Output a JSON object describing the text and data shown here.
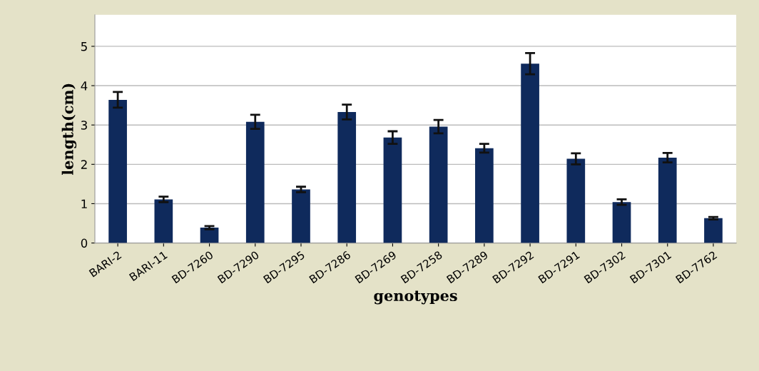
{
  "chart_data": {
    "type": "bar",
    "xlabel": "genotypes",
    "ylabel": "length(cm)",
    "categories": [
      "BARI-2",
      "BARI-11",
      "BD-7260",
      "BD-7290",
      "BD-7295",
      "BD-7286",
      "BD-7269",
      "BD-7258",
      "BD-7289",
      "BD-7292",
      "BD-7291",
      "BD-7302",
      "BD-7301",
      "BD-7762"
    ],
    "values": [
      3.64,
      1.11,
      0.39,
      3.08,
      1.36,
      3.33,
      2.68,
      2.96,
      2.41,
      4.56,
      2.14,
      1.04,
      2.17,
      0.63
    ],
    "errors": [
      0.2,
      0.07,
      0.04,
      0.18,
      0.07,
      0.19,
      0.16,
      0.17,
      0.11,
      0.27,
      0.14,
      0.07,
      0.12,
      0.03
    ],
    "color": "#0f2a5c",
    "ylim": [
      0,
      5.8
    ],
    "yticks": [
      0,
      1,
      2,
      3,
      4,
      5
    ],
    "grid": "y",
    "legend": false
  }
}
